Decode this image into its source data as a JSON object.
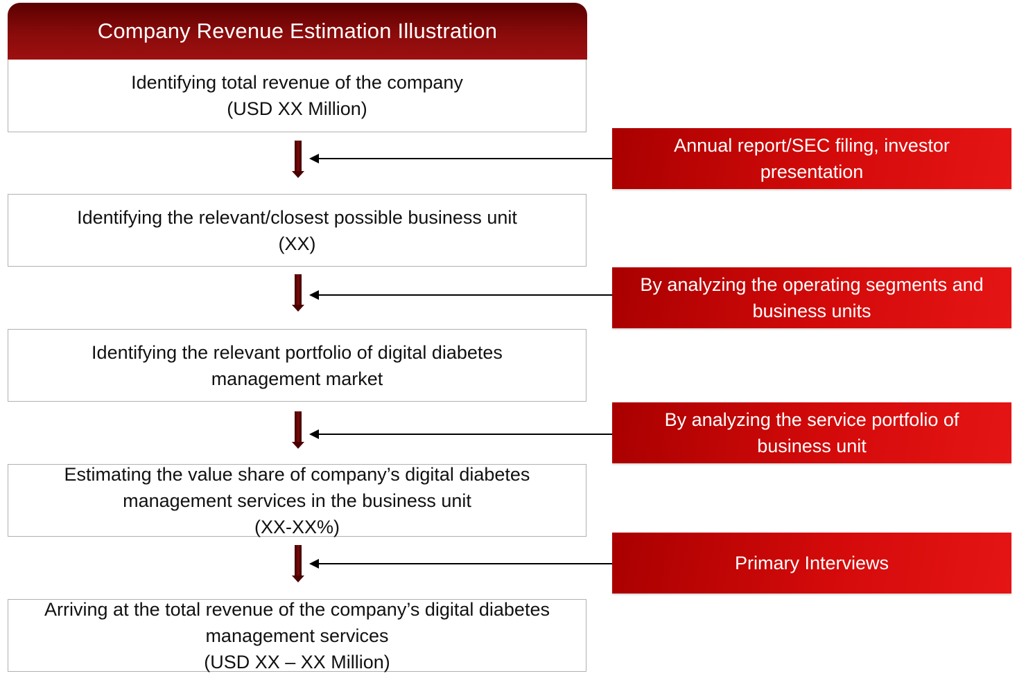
{
  "title": "Company Revenue Estimation Illustration",
  "steps": [
    {
      "lines": [
        "Identifying total revenue of the company",
        "(USD XX Million)"
      ]
    },
    {
      "lines": [
        "Identifying the relevant/closest possible business unit",
        "(XX)"
      ]
    },
    {
      "lines": [
        "Identifying the relevant portfolio of digital diabetes",
        "management market"
      ]
    },
    {
      "lines": [
        "Estimating the value share of company’s digital diabetes",
        "management services in the business unit",
        "(XX-XX%)"
      ]
    },
    {
      "lines": [
        "Arriving at the total revenue of the company’s digital diabetes",
        "management services",
        "(USD XX – XX Million)"
      ]
    }
  ],
  "sources": [
    {
      "lines": [
        "Annual report/SEC filing, investor",
        "presentation"
      ]
    },
    {
      "lines": [
        "By analyzing the operating segments and",
        "business units"
      ]
    },
    {
      "lines": [
        "By analyzing the service portfolio of",
        "business unit"
      ]
    },
    {
      "lines": [
        "Primary Interviews"
      ]
    }
  ],
  "colors": {
    "title_bar": "#7a0505",
    "source_box": "#d40a0a",
    "down_arrow": "#5a0000",
    "connector": "#000000",
    "step_border": "#b0b0b0"
  }
}
